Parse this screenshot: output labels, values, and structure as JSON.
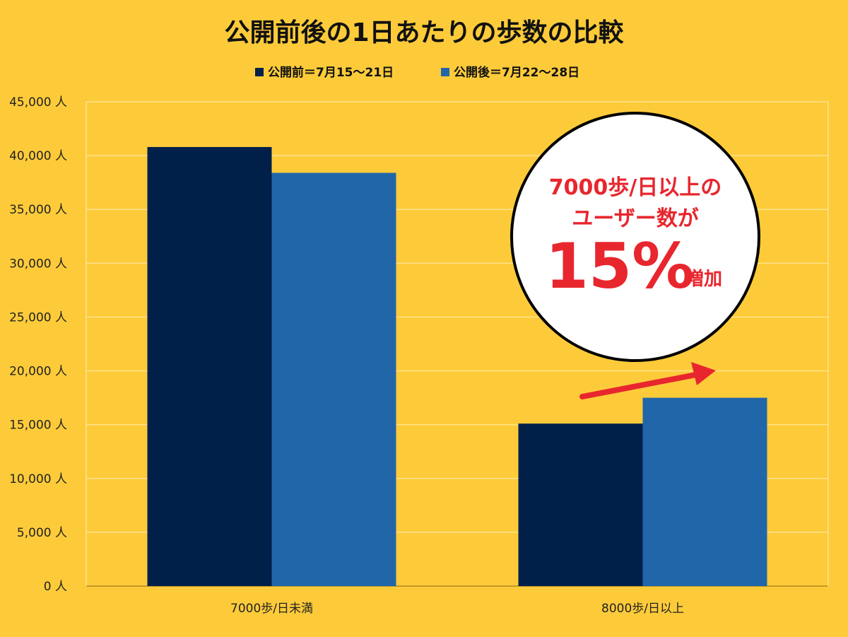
{
  "chart_data": {
    "type": "bar",
    "title": "公開前後の1日あたりの歩数の比較",
    "categories": [
      "7000歩/日未満",
      "8000歩/日以上"
    ],
    "series": [
      {
        "name": "公開前＝7月15～21日",
        "color": "#00204A",
        "values": [
          40800,
          15100
        ]
      },
      {
        "name": "公開後＝7月22～28日",
        "color": "#2166A9",
        "values": [
          38400,
          17500
        ]
      }
    ],
    "ylim": [
      0,
      45000
    ],
    "yticks": [
      "0 人",
      "5,000 人",
      "10,000 人",
      "15,000 人",
      "20,000 人",
      "25,000 人",
      "30,000 人",
      "35,000 人",
      "40,000 人",
      "45,000 人"
    ],
    "grid": true,
    "legend_position": "top",
    "annotation": {
      "line1": "7000歩/日以上の",
      "line2": "ユーザー数が",
      "value": "15%",
      "suffix": "増加",
      "color": "#E8262E"
    }
  }
}
